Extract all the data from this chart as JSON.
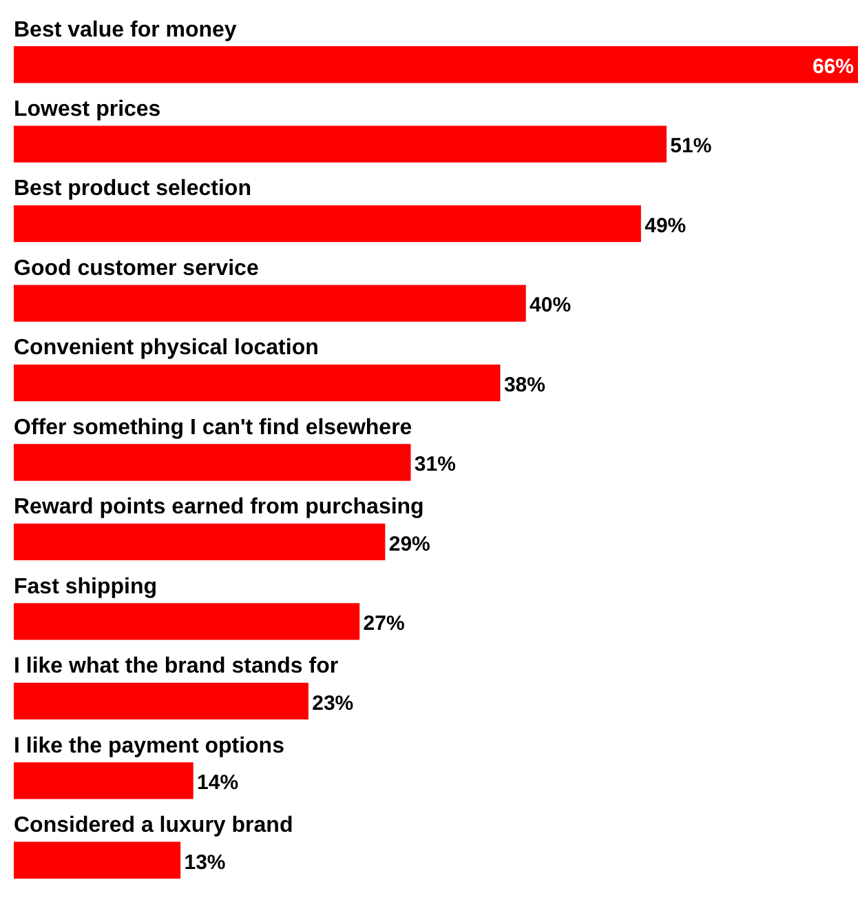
{
  "chart_data": {
    "type": "bar",
    "orientation": "horizontal",
    "categories": [
      "Best value for money",
      "Lowest prices",
      "Best product selection",
      "Good customer service",
      "Convenient physical location",
      "Offer something I can't find elsewhere",
      "Reward points earned from purchasing",
      "Fast shipping",
      "I like what the brand stands for",
      "I like the payment options",
      "Considered a luxury brand"
    ],
    "values": [
      66,
      51,
      49,
      40,
      38,
      31,
      29,
      27,
      23,
      14,
      13
    ],
    "value_labels": [
      "66%",
      "51%",
      "49%",
      "40%",
      "38%",
      "31%",
      "29%",
      "27%",
      "23%",
      "14%",
      "13%"
    ],
    "color": "#ff0000"
  }
}
